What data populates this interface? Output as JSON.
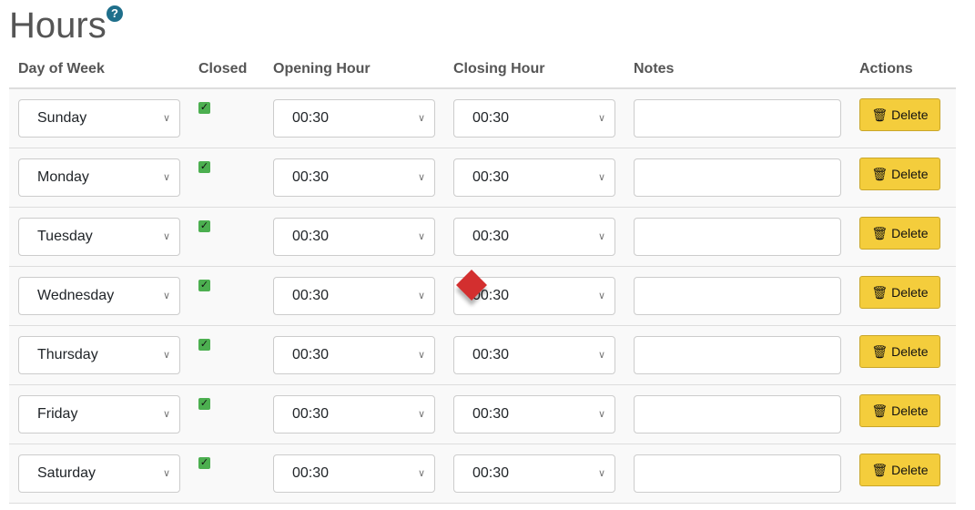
{
  "title": "Hours",
  "help_icon": "question-circle-icon",
  "columns": [
    "Day of Week",
    "Closed",
    "Opening Hour",
    "Closing Hour",
    "Notes",
    "Actions"
  ],
  "delete_label": "Delete",
  "rows": [
    {
      "day": "Sunday",
      "closed": true,
      "open": "00:30",
      "close": "00:30",
      "notes": ""
    },
    {
      "day": "Monday",
      "closed": true,
      "open": "00:30",
      "close": "00:30",
      "notes": ""
    },
    {
      "day": "Tuesday",
      "closed": true,
      "open": "00:30",
      "close": "00:30",
      "notes": ""
    },
    {
      "day": "Wednesday",
      "closed": true,
      "open": "00:30",
      "close": "00:30",
      "notes": ""
    },
    {
      "day": "Thursday",
      "closed": true,
      "open": "00:30",
      "close": "00:30",
      "notes": ""
    },
    {
      "day": "Friday",
      "closed": true,
      "open": "00:30",
      "close": "00:30",
      "notes": ""
    },
    {
      "day": "Saturday",
      "closed": true,
      "open": "00:30",
      "close": "00:30",
      "notes": ""
    }
  ],
  "colors": {
    "delete_button": "#f4cd3c",
    "checkbox": "#4caf50",
    "help": "#1f6f8b"
  }
}
